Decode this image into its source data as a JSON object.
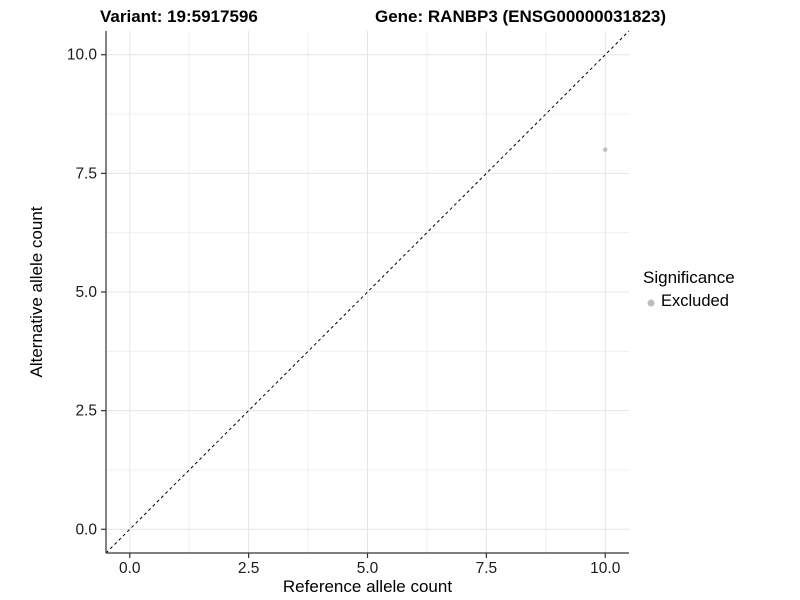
{
  "titles": {
    "variant": "Variant: 19:5917596",
    "gene": "Gene: RANBP3 (ENSG00000031823)"
  },
  "axes": {
    "x_label": "Reference allele count",
    "y_label": "Alternative allele count"
  },
  "legend": {
    "title": "Significance",
    "items": [
      {
        "label": "Excluded",
        "color": "#bebebe"
      }
    ]
  },
  "colors": {
    "axis_line": "#333333",
    "tick_mark": "#333333",
    "tick_label": "#1a1a1a",
    "grid_major": "#e4e4e4",
    "grid_minor": "#f0f0f0",
    "reference_line": "#000000",
    "point": "#bebebe",
    "background": "#ffffff"
  },
  "chart_data": {
    "type": "scatter",
    "title_left": "Variant: 19:5917596",
    "title_right": "Gene: RANBP3 (ENSG00000031823)",
    "xlabel": "Reference allele count",
    "ylabel": "Alternative allele count",
    "xlim": [
      -0.5,
      10.5
    ],
    "ylim": [
      -0.5,
      10.5
    ],
    "x_ticks": [
      0.0,
      2.5,
      5.0,
      7.5,
      10.0
    ],
    "y_ticks": [
      0.0,
      2.5,
      5.0,
      7.5,
      10.0
    ],
    "x_tick_labels": [
      "0.0",
      "2.5",
      "5.0",
      "7.5",
      "10.0"
    ],
    "y_tick_labels": [
      "0.0",
      "2.5",
      "5.0",
      "7.5",
      "10.0"
    ],
    "x_minor_ticks": [
      1.25,
      3.75,
      6.25,
      8.75
    ],
    "y_minor_ticks": [
      1.25,
      3.75,
      6.25,
      8.75
    ],
    "grid": true,
    "legend_position": "right",
    "series": [
      {
        "name": "Excluded",
        "color": "#bebebe",
        "points": [
          {
            "x": 10,
            "y": 8
          }
        ]
      }
    ],
    "reference_line": {
      "kind": "identity",
      "slope": 1,
      "intercept": 0,
      "style": "dashed",
      "color": "#000000"
    }
  }
}
